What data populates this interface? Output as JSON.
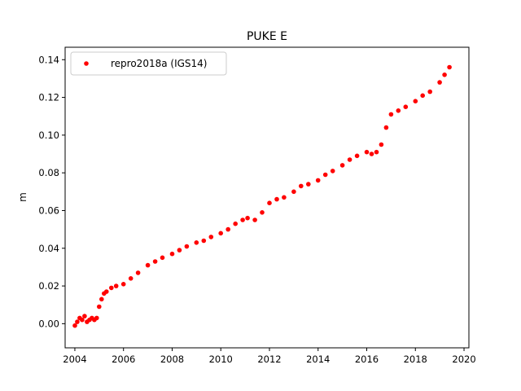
{
  "chart_data": {
    "type": "scatter",
    "title": "PUKE E",
    "xlabel": "",
    "ylabel": "m",
    "xlim": [
      2003.6,
      2020.2
    ],
    "ylim": [
      -0.0128,
      0.1466
    ],
    "xticks": [
      "2004",
      "2006",
      "2008",
      "2010",
      "2012",
      "2014",
      "2016",
      "2018",
      "2020"
    ],
    "yticks": [
      "0.00",
      "0.02",
      "0.04",
      "0.06",
      "0.08",
      "0.10",
      "0.12",
      "0.14"
    ],
    "grid": false,
    "legend_position": "top-left",
    "color": "#ff0000",
    "series": [
      {
        "name": "repro2018a (IGS14)",
        "x": [
          2004.0,
          2004.1,
          2004.2,
          2004.3,
          2004.4,
          2004.5,
          2004.6,
          2004.7,
          2004.8,
          2004.9,
          2005.0,
          2005.1,
          2005.2,
          2005.3,
          2005.5,
          2005.7,
          2006.0,
          2006.3,
          2006.6,
          2007.0,
          2007.3,
          2007.6,
          2008.0,
          2008.3,
          2008.6,
          2009.0,
          2009.3,
          2009.6,
          2010.0,
          2010.3,
          2010.6,
          2010.9,
          2011.1,
          2011.4,
          2011.7,
          2012.0,
          2012.3,
          2012.6,
          2013.0,
          2013.3,
          2013.6,
          2014.0,
          2014.3,
          2014.6,
          2015.0,
          2015.3,
          2015.6,
          2016.0,
          2016.2,
          2016.4,
          2016.6,
          2016.8,
          2017.0,
          2017.3,
          2017.6,
          2018.0,
          2018.3,
          2018.6,
          2019.0,
          2019.2,
          2019.4
        ],
        "y": [
          -0.001,
          0.001,
          0.003,
          0.002,
          0.004,
          0.001,
          0.002,
          0.003,
          0.002,
          0.003,
          0.009,
          0.013,
          0.016,
          0.017,
          0.019,
          0.02,
          0.021,
          0.024,
          0.027,
          0.031,
          0.033,
          0.035,
          0.037,
          0.039,
          0.041,
          0.043,
          0.044,
          0.046,
          0.048,
          0.05,
          0.053,
          0.055,
          0.056,
          0.055,
          0.059,
          0.064,
          0.066,
          0.067,
          0.07,
          0.073,
          0.074,
          0.076,
          0.079,
          0.081,
          0.084,
          0.087,
          0.089,
          0.091,
          0.09,
          0.091,
          0.095,
          0.104,
          0.111,
          0.113,
          0.115,
          0.118,
          0.121,
          0.123,
          0.128,
          0.132,
          0.136
        ]
      }
    ]
  }
}
